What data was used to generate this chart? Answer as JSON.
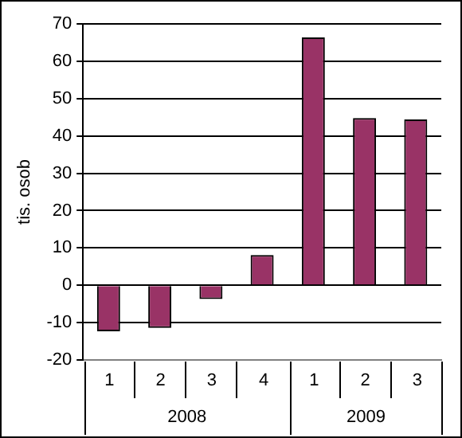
{
  "chart_data": {
    "type": "bar",
    "ylabel": "tis. osob",
    "categories": [
      "1",
      "2",
      "3",
      "4",
      "1",
      "2",
      "3"
    ],
    "annotations": [
      "2008",
      "2009"
    ],
    "values": [
      -12.3,
      -11.4,
      -3.7,
      8.1,
      66.4,
      44.8,
      44.4
    ],
    "color": "#993366",
    "ylim": [
      -20,
      70
    ],
    "yticks": [
      -20,
      -10,
      0,
      10,
      20,
      30,
      40,
      50,
      60,
      70
    ],
    "grid": "y",
    "legend": false
  }
}
